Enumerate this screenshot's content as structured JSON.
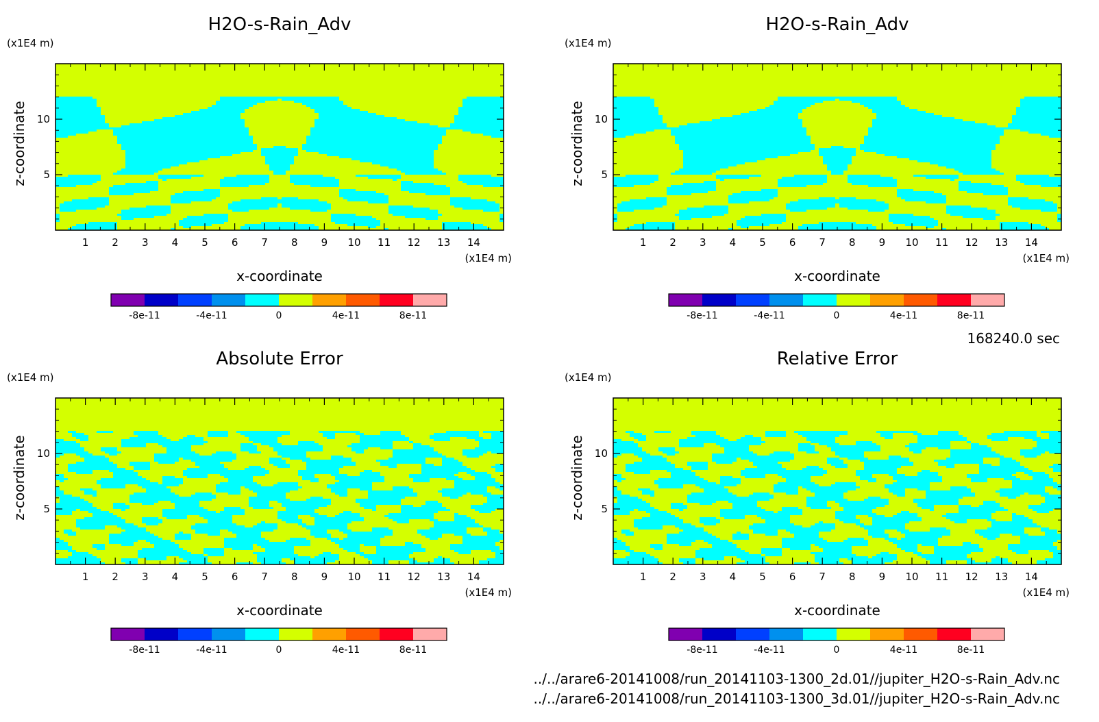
{
  "chart_data": [
    {
      "type": "heatmap",
      "title": "H2O-s-Rain_Adv",
      "xlabel": "x-coordinate",
      "ylabel": "z-coordinate",
      "x_unit": "(x1E4 m)",
      "y_unit": "(x1E4 m)",
      "xlim": [
        0,
        15
      ],
      "ylim": [
        0,
        15
      ],
      "x_ticks": [
        "1",
        "2",
        "3",
        "4",
        "5",
        "6",
        "7",
        "8",
        "9",
        "10",
        "11",
        "12",
        "13",
        "14"
      ],
      "y_ticks": [
        "5",
        "10"
      ],
      "pattern": "smooth",
      "colors": [
        "#d4ff00",
        "#00ffff"
      ]
    },
    {
      "type": "heatmap",
      "title": "H2O-s-Rain_Adv",
      "xlabel": "x-coordinate",
      "ylabel": "z-coordinate",
      "x_unit": "(x1E4 m)",
      "y_unit": "(x1E4 m)",
      "xlim": [
        0,
        15
      ],
      "ylim": [
        0,
        15
      ],
      "x_ticks": [
        "1",
        "2",
        "3",
        "4",
        "5",
        "6",
        "7",
        "8",
        "9",
        "10",
        "11",
        "12",
        "13",
        "14"
      ],
      "y_ticks": [
        "5",
        "10"
      ],
      "pattern": "smooth",
      "colors": [
        "#d4ff00",
        "#00ffff"
      ]
    },
    {
      "type": "heatmap",
      "title": "Absolute Error",
      "xlabel": "x-coordinate",
      "ylabel": "z-coordinate",
      "x_unit": "(x1E4 m)",
      "y_unit": "(x1E4 m)",
      "xlim": [
        0,
        15
      ],
      "ylim": [
        0,
        15
      ],
      "x_ticks": [
        "1",
        "2",
        "3",
        "4",
        "5",
        "6",
        "7",
        "8",
        "9",
        "10",
        "11",
        "12",
        "13",
        "14"
      ],
      "y_ticks": [
        "5",
        "10"
      ],
      "pattern": "noisy",
      "colors": [
        "#d4ff00",
        "#00ffff"
      ]
    },
    {
      "type": "heatmap",
      "title": "Relative Error",
      "xlabel": "x-coordinate",
      "ylabel": "z-coordinate",
      "x_unit": "(x1E4 m)",
      "y_unit": "(x1E4 m)",
      "xlim": [
        0,
        15
      ],
      "ylim": [
        0,
        15
      ],
      "x_ticks": [
        "1",
        "2",
        "3",
        "4",
        "5",
        "6",
        "7",
        "8",
        "9",
        "10",
        "11",
        "12",
        "13",
        "14"
      ],
      "y_ticks": [
        "5",
        "10"
      ],
      "pattern": "noisy",
      "colors": [
        "#d4ff00",
        "#00ffff"
      ]
    }
  ],
  "colorbar": {
    "colors": [
      "#8000b0",
      "#0000c8",
      "#0040ff",
      "#0090ee",
      "#00ffff",
      "#d4ff00",
      "#ffa000",
      "#ff5a00",
      "#ff0020",
      "#ffaaaa"
    ],
    "tick_labels": [
      "-8e-11",
      "-4e-11",
      "0",
      "4e-11",
      "8e-11"
    ]
  },
  "time_label": "168240.0 sec",
  "file_paths": [
    "../../arare6-20141008/run_20141103-1300_2d.01//jupiter_H2O-s-Rain_Adv.nc",
    "../../arare6-20141008/run_20141103-1300_3d.01//jupiter_H2O-s-Rain_Adv.nc"
  ]
}
